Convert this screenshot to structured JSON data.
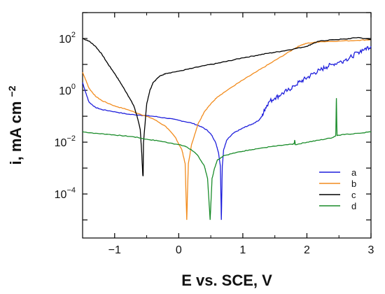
{
  "chart_data": {
    "type": "line",
    "title": "",
    "xlabel": "E vs. SCE, V",
    "ylabel": "i, mA cm",
    "ylabel_sup": "−2",
    "xscale": "linear",
    "yscale": "log",
    "xlim": [
      -1.5,
      3
    ],
    "ylim": [
      2e-06,
      1000
    ],
    "grid": false,
    "legend_position": "lower right",
    "x_ticks": [
      {
        "value": -1,
        "label": "−1"
      },
      {
        "value": 0,
        "label": "0"
      },
      {
        "value": 1,
        "label": "1"
      },
      {
        "value": 2,
        "label": "2"
      },
      {
        "value": 3,
        "label": "3"
      }
    ],
    "y_ticks": [
      {
        "value": 100,
        "base": "10",
        "exp": "2"
      },
      {
        "value": 1,
        "base": "10",
        "exp": "0"
      },
      {
        "value": 0.01,
        "base": "10",
        "exp": "−2"
      },
      {
        "value": 0.0001,
        "base": "10",
        "exp": "−4"
      }
    ],
    "series": [
      {
        "name": "a",
        "color": "#1f1fdc",
        "points": [
          [
            -1.5,
            2.0
          ],
          [
            -1.45,
            0.8
          ],
          [
            -1.4,
            0.35
          ],
          [
            -1.3,
            0.22
          ],
          [
            -1.2,
            0.18
          ],
          [
            -1.0,
            0.15
          ],
          [
            -0.8,
            0.12
          ],
          [
            -0.6,
            0.11
          ],
          [
            -0.4,
            0.1
          ],
          [
            -0.2,
            0.085
          ],
          [
            0.0,
            0.07
          ],
          [
            0.2,
            0.055
          ],
          [
            0.35,
            0.04
          ],
          [
            0.45,
            0.028
          ],
          [
            0.52,
            0.018
          ],
          [
            0.58,
            0.009
          ],
          [
            0.62,
            0.004
          ],
          [
            0.65,
            0.0012
          ],
          [
            0.665,
            1e-05
          ],
          [
            0.68,
            0.0012
          ],
          [
            0.7,
            0.005
          ],
          [
            0.75,
            0.012
          ],
          [
            0.85,
            0.022
          ],
          [
            0.95,
            0.03
          ],
          [
            1.05,
            0.04
          ],
          [
            1.15,
            0.05
          ],
          [
            1.25,
            0.07
          ],
          [
            1.3,
            0.1
          ],
          [
            1.35,
            0.2
          ],
          [
            1.4,
            0.35
          ],
          [
            1.5,
            0.5
          ],
          [
            1.6,
            0.7
          ],
          [
            1.7,
            1.0
          ],
          [
            1.8,
            1.5
          ],
          [
            1.9,
            2.2
          ],
          [
            2.0,
            3.0
          ],
          [
            2.1,
            4.5
          ],
          [
            2.2,
            6.0
          ],
          [
            2.3,
            8.0
          ],
          [
            2.4,
            10.0
          ],
          [
            2.5,
            12.0
          ],
          [
            2.6,
            15.0
          ],
          [
            2.7,
            20.0
          ],
          [
            2.8,
            30.0
          ],
          [
            2.9,
            40.0
          ],
          [
            3.0,
            50.0
          ]
        ]
      },
      {
        "name": "b",
        "color": "#f28c1e",
        "points": [
          [
            -1.5,
            5.0
          ],
          [
            -1.45,
            2.5
          ],
          [
            -1.4,
            1.2
          ],
          [
            -1.3,
            0.6
          ],
          [
            -1.2,
            0.4
          ],
          [
            -1.0,
            0.25
          ],
          [
            -0.8,
            0.18
          ],
          [
            -0.6,
            0.12
          ],
          [
            -0.4,
            0.08
          ],
          [
            -0.2,
            0.04
          ],
          [
            -0.05,
            0.015
          ],
          [
            0.05,
            0.005
          ],
          [
            0.1,
            0.0015
          ],
          [
            0.125,
            1e-05
          ],
          [
            0.15,
            0.0015
          ],
          [
            0.2,
            0.008
          ],
          [
            0.3,
            0.05
          ],
          [
            0.4,
            0.15
          ],
          [
            0.5,
            0.3
          ],
          [
            0.6,
            0.55
          ],
          [
            0.8,
            1.2
          ],
          [
            1.0,
            2.5
          ],
          [
            1.2,
            5.0
          ],
          [
            1.4,
            10.0
          ],
          [
            1.6,
            20.0
          ],
          [
            1.8,
            40.0
          ],
          [
            1.9,
            55.0
          ],
          [
            2.0,
            65.0
          ],
          [
            2.2,
            75.0
          ],
          [
            2.5,
            80.0
          ],
          [
            2.8,
            85.0
          ],
          [
            3.0,
            90.0
          ]
        ]
      },
      {
        "name": "c",
        "color": "#000000",
        "points": [
          [
            -1.5,
            100.0
          ],
          [
            -1.4,
            80.0
          ],
          [
            -1.3,
            50.0
          ],
          [
            -1.2,
            25.0
          ],
          [
            -1.1,
            10.0
          ],
          [
            -1.0,
            4.5
          ],
          [
            -0.9,
            1.8
          ],
          [
            -0.8,
            0.7
          ],
          [
            -0.7,
            0.25
          ],
          [
            -0.65,
            0.1
          ],
          [
            -0.6,
            0.03
          ],
          [
            -0.58,
            0.005
          ],
          [
            -0.56,
            0.0005
          ],
          [
            -0.555,
            0.0005
          ],
          [
            -0.55,
            0.01
          ],
          [
            -0.5,
            0.3
          ],
          [
            -0.45,
            1.0
          ],
          [
            -0.4,
            2.0
          ],
          [
            -0.3,
            3.5
          ],
          [
            -0.2,
            4.5
          ],
          [
            0.0,
            5.5
          ],
          [
            0.2,
            7.0
          ],
          [
            0.4,
            9.0
          ],
          [
            0.6,
            11.0
          ],
          [
            0.8,
            14.0
          ],
          [
            1.0,
            18.0
          ],
          [
            1.2,
            22.0
          ],
          [
            1.4,
            27.0
          ],
          [
            1.6,
            32.0
          ],
          [
            1.8,
            40.0
          ],
          [
            2.0,
            50.0
          ],
          [
            2.1,
            65.0
          ],
          [
            2.2,
            80.0
          ],
          [
            2.4,
            90.0
          ],
          [
            2.6,
            95.0
          ],
          [
            2.8,
            110.0
          ],
          [
            3.0,
            90.0
          ]
        ]
      },
      {
        "name": "d",
        "color": "#1a8c2a",
        "points": [
          [
            -1.5,
            0.025
          ],
          [
            -1.3,
            0.022
          ],
          [
            -1.1,
            0.02
          ],
          [
            -0.9,
            0.018
          ],
          [
            -0.7,
            0.016
          ],
          [
            -0.5,
            0.013
          ],
          [
            -0.3,
            0.011
          ],
          [
            -0.1,
            0.009
          ],
          [
            0.1,
            0.007
          ],
          [
            0.2,
            0.005
          ],
          [
            0.3,
            0.003
          ],
          [
            0.4,
            0.0012
          ],
          [
            0.45,
            0.0004
          ],
          [
            0.49,
            1e-05
          ],
          [
            0.52,
            0.0004
          ],
          [
            0.56,
            0.001
          ],
          [
            0.6,
            0.002
          ],
          [
            0.7,
            0.003
          ],
          [
            0.9,
            0.004
          ],
          [
            1.1,
            0.005
          ],
          [
            1.3,
            0.006
          ],
          [
            1.5,
            0.007
          ],
          [
            1.7,
            0.008
          ],
          [
            1.8,
            0.0085
          ],
          [
            1.81,
            0.012
          ],
          [
            1.82,
            0.008
          ],
          [
            2.0,
            0.01
          ],
          [
            2.2,
            0.012
          ],
          [
            2.4,
            0.015
          ],
          [
            2.45,
            0.018
          ],
          [
            2.46,
            0.5
          ],
          [
            2.47,
            0.018
          ],
          [
            2.6,
            0.02
          ],
          [
            2.8,
            0.022
          ],
          [
            3.0,
            0.025
          ]
        ]
      }
    ]
  }
}
